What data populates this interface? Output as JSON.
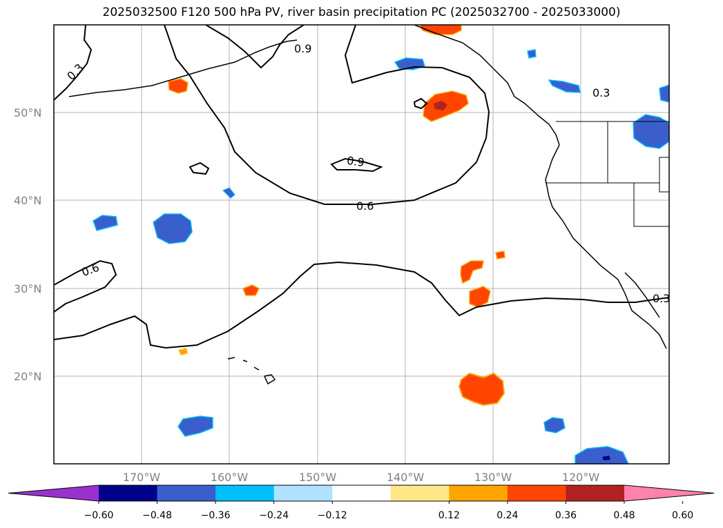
{
  "title": "2025032500 F120 500 hPa PV, river basin precipitation PC (2025032700 - 2025033000)",
  "map": {
    "lat_ticks": [
      "20°N",
      "30°N",
      "40°N",
      "50°N"
    ],
    "lon_ticks": [
      "170°W",
      "160°W",
      "150°W",
      "140°W",
      "130°W",
      "120°W"
    ],
    "gridlines": true,
    "contour_levels": [
      0.3,
      0.6,
      0.9
    ],
    "contour_labels": [
      "0.3",
      "0.9",
      "0.9",
      "0.6",
      "0.6",
      "0.3",
      "0.3"
    ]
  },
  "colorbar": {
    "orientation": "horizontal",
    "extend": "both",
    "tick_labels": [
      "−0.60",
      "−0.48",
      "−0.36",
      "−0.24",
      "−0.12",
      "0.12",
      "0.24",
      "0.36",
      "0.48",
      "0.60"
    ],
    "colors": [
      "#9932cc",
      "#00008b",
      "#3a5fcd",
      "#00bfff",
      "#b0e2ff",
      "#ffffff",
      "#ffe88a",
      "#ffa500",
      "#ff4500",
      "#b22222",
      "#ff82ab"
    ]
  }
}
